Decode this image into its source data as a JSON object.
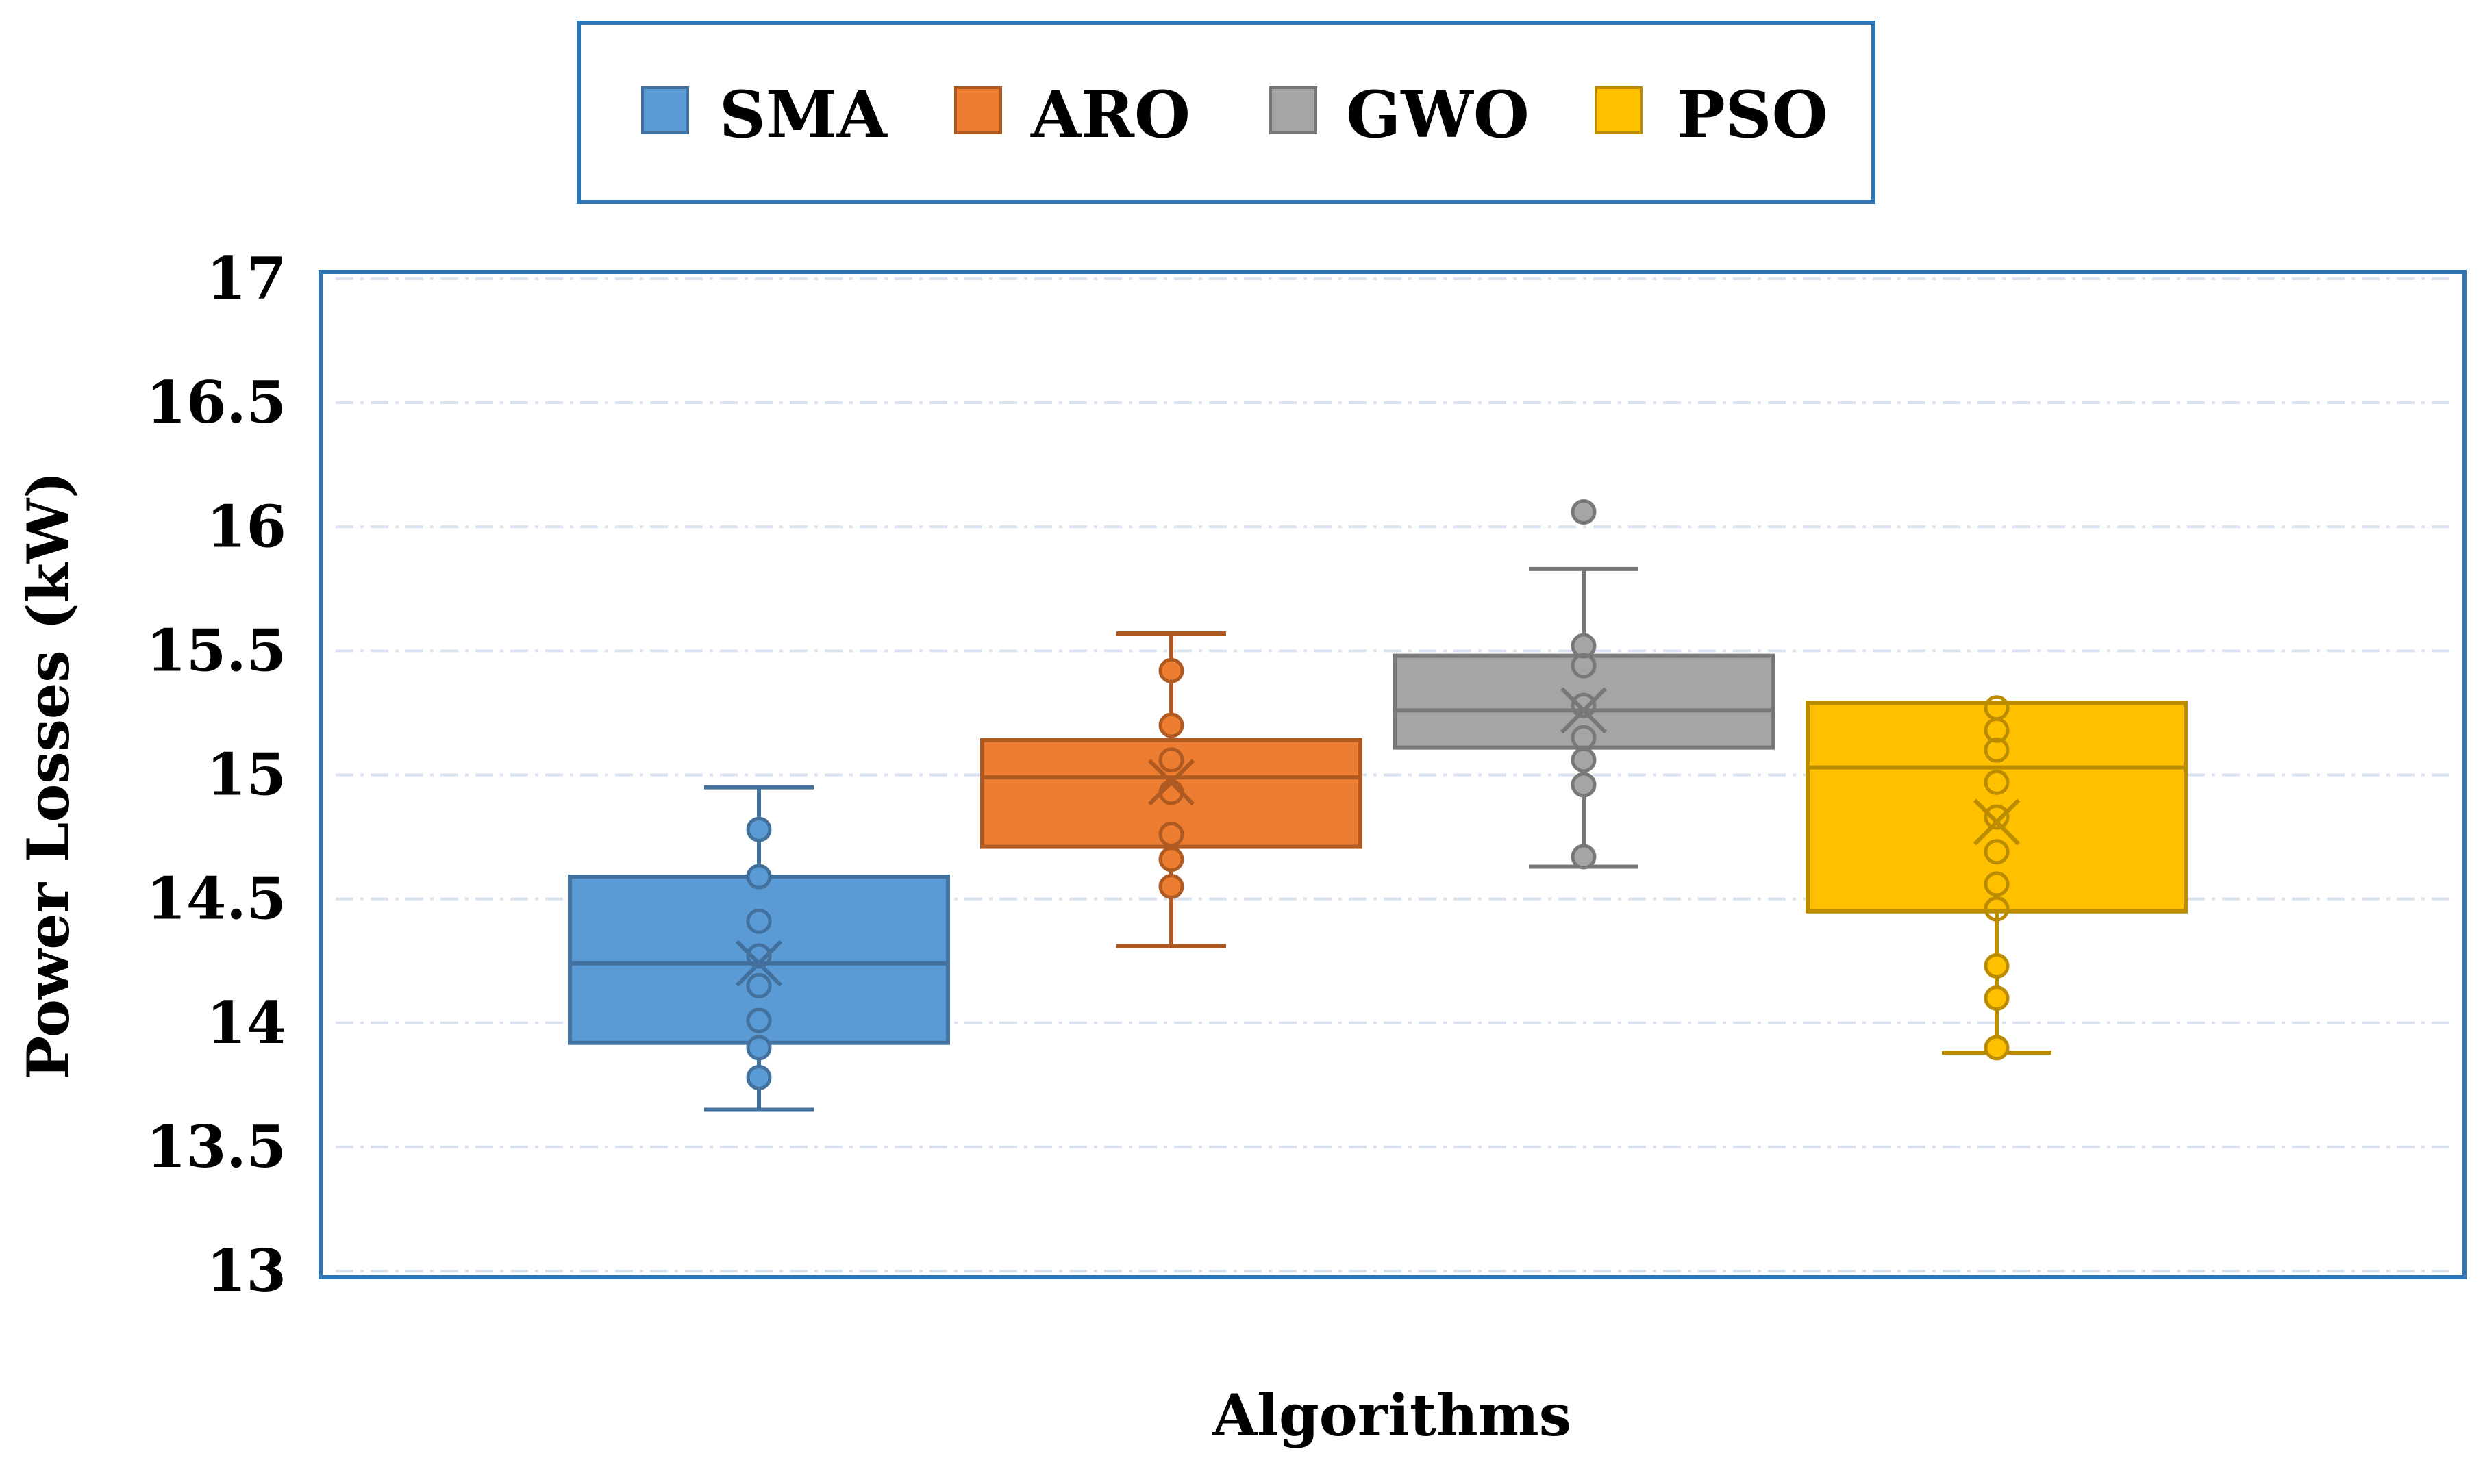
{
  "chart_data": {
    "type": "boxplot",
    "title": "",
    "xlabel": "Algorithms",
    "ylabel": "Power Losses (kW)",
    "ylim": [
      13,
      17
    ],
    "yticks": [
      13,
      13.5,
      14,
      14.5,
      15,
      15.5,
      16,
      16.5,
      17
    ],
    "ytick_labels": [
      "13",
      "13.5",
      "14",
      "14.5",
      "15",
      "15.5",
      "16",
      "16.5",
      "17"
    ],
    "grid": "horizontal-dashed",
    "legend_position": "top-center",
    "series": [
      {
        "name": "SMA",
        "color": "#5B9BD5",
        "edge_color": "#41719C",
        "q1": 13.92,
        "median": 14.24,
        "q3": 14.59,
        "mean": 14.24,
        "whisker_low": 13.65,
        "whisker_high": 14.95,
        "points": [
          14.78,
          14.59,
          14.41,
          14.27,
          14.15,
          14.01,
          13.9,
          13.78
        ]
      },
      {
        "name": "ARO",
        "color": "#ED7D31",
        "edge_color": "#AE5A21",
        "q1": 14.71,
        "median": 14.99,
        "q3": 15.14,
        "mean": 14.97,
        "whisker_low": 14.31,
        "whisker_high": 15.57,
        "points": [
          15.42,
          15.2,
          15.06,
          14.93,
          14.76,
          14.66,
          14.55
        ]
      },
      {
        "name": "GWO",
        "color": "#A5A5A5",
        "edge_color": "#787878",
        "q1": 15.11,
        "median": 15.26,
        "q3": 15.48,
        "mean": 15.26,
        "whisker_low": 14.63,
        "whisker_high": 15.83,
        "points": [
          16.06,
          15.52,
          15.44,
          15.28,
          15.15,
          15.06,
          14.96,
          14.67
        ]
      },
      {
        "name": "PSO",
        "color": "#FFC000",
        "edge_color": "#BC8C00",
        "q1": 14.45,
        "median": 15.03,
        "q3": 15.29,
        "mean": 14.81,
        "whisker_low": 13.88,
        "whisker_high": 15.29,
        "points": [
          15.27,
          15.18,
          15.1,
          14.97,
          14.83,
          14.69,
          14.56,
          14.46,
          14.23,
          14.1,
          13.9
        ]
      }
    ]
  }
}
